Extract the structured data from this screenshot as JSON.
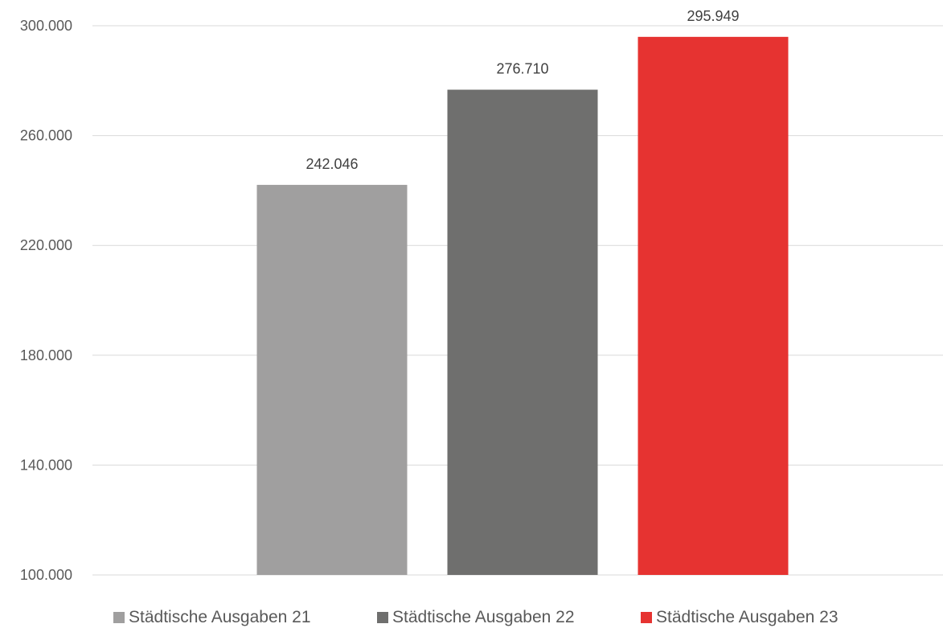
{
  "chart_data": {
    "type": "bar",
    "title": "",
    "xlabel": "",
    "ylabel": "",
    "ylim": [
      100000,
      300000
    ],
    "y_ticks": [
      100000,
      140000,
      180000,
      220000,
      260000,
      300000
    ],
    "y_tick_labels": [
      "100.000",
      "140.000",
      "180.000",
      "220.000",
      "260.000",
      "300.000"
    ],
    "grid": "horizontal",
    "legend_position": "bottom",
    "series": [
      {
        "name": "Städtische Ausgaben 21",
        "values": [
          242046
        ],
        "value_label": "242.046",
        "color": "#a09f9f"
      },
      {
        "name": "Städtische Ausgaben 22",
        "values": [
          276710
        ],
        "value_label": "276.710",
        "color": "#6f6f6e"
      },
      {
        "name": "Städtische Ausgaben 23",
        "values": [
          295949
        ],
        "value_label": "295.949",
        "color": "#e63331"
      }
    ]
  }
}
